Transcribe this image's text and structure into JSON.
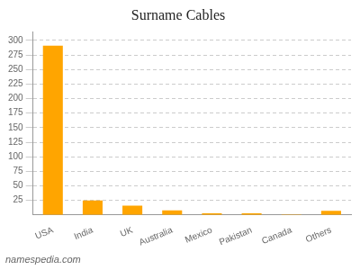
{
  "chart_data": {
    "type": "bar",
    "title": "Surname Cables",
    "categories": [
      "USA",
      "India",
      "UK",
      "Australia",
      "Mexico",
      "Pakistan",
      "Canada",
      "Others"
    ],
    "values": [
      291,
      25,
      16,
      8,
      3,
      3,
      1,
      7
    ],
    "color": "#FFA500",
    "ylim": [
      0,
      315
    ],
    "yticks": [
      25,
      50,
      75,
      100,
      125,
      150,
      175,
      200,
      225,
      250,
      275,
      300
    ],
    "grid": true,
    "annotations": [
      "namespedia.com"
    ]
  }
}
